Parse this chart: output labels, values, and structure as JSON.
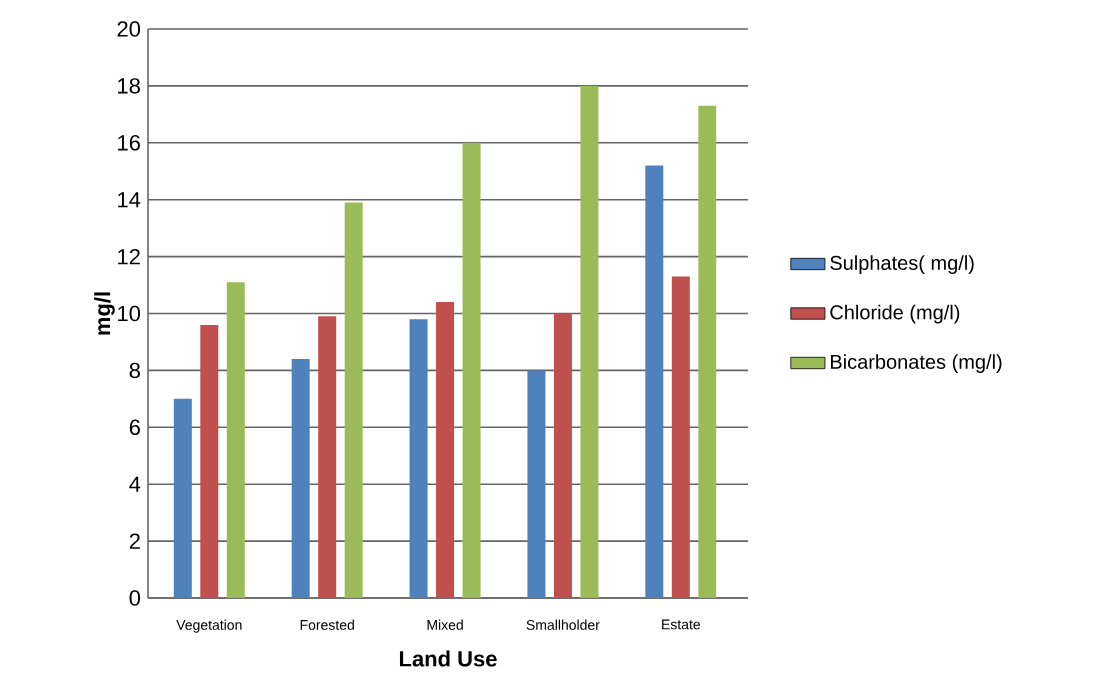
{
  "chart_data": {
    "type": "bar",
    "xlabel": "Land Use",
    "ylabel": "mg/l",
    "categories": [
      "Vegetation",
      "Forested",
      "Mixed",
      "Smallholder",
      "Estate"
    ],
    "series": [
      {
        "name": "Sulphates( mg/l)",
        "color": "#4f81bd",
        "values": [
          7.0,
          8.4,
          9.8,
          8.0,
          15.2
        ]
      },
      {
        "name": "Chloride (mg/l)",
        "color": "#c0504d",
        "values": [
          9.6,
          9.9,
          10.4,
          10.0,
          11.3
        ]
      },
      {
        "name": "Bicarbonates (mg/l)",
        "color": "#9bbb59",
        "values": [
          11.1,
          13.9,
          16.0,
          18.0,
          17.3
        ]
      }
    ],
    "ylim": [
      0,
      20
    ],
    "yticks": [
      0,
      2,
      4,
      6,
      8,
      10,
      12,
      14,
      16,
      18,
      20
    ],
    "grid": "y",
    "legend": "right"
  }
}
